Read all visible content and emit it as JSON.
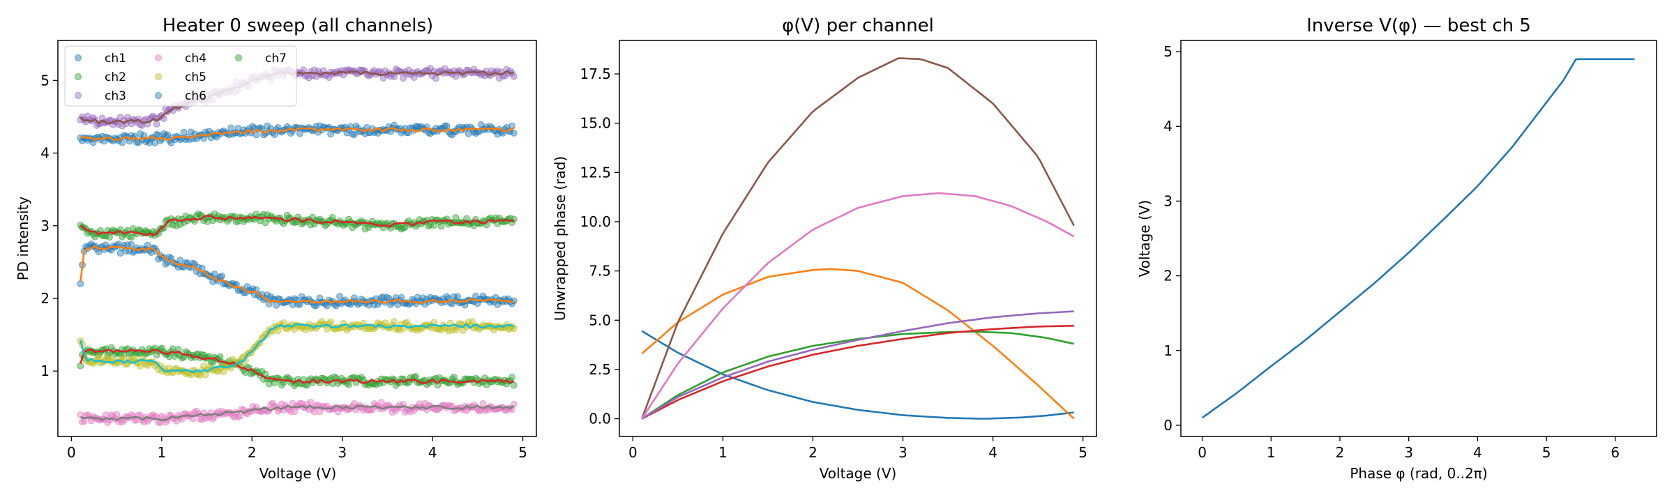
{
  "chart_data": [
    {
      "type": "scatter",
      "title": "Heater 0 sweep (all channels)",
      "xlabel": "Voltage (V)",
      "ylabel": "PD intensity",
      "xlim": [
        -0.15,
        5.15
      ],
      "ylim": [
        0.1,
        5.55
      ],
      "xticks": [
        0,
        1,
        2,
        3,
        4,
        5
      ],
      "yticks": [
        1,
        2,
        3,
        4,
        5
      ],
      "grid": false,
      "legend": {
        "placement": "upper-left",
        "columns": 3,
        "entries": [
          "ch1",
          "ch2",
          "ch3",
          "ch4",
          "ch5",
          "ch6",
          "ch7"
        ]
      },
      "series": [
        {
          "name": "ch1",
          "marker_color": "#1f77b4",
          "line_color": "#ff7f0e",
          "points": [
            [
              0.1,
              2.25
            ],
            [
              0.15,
              2.72
            ],
            [
              0.2,
              2.7
            ],
            [
              0.5,
              2.69
            ],
            [
              0.9,
              2.68
            ],
            [
              1.0,
              2.55
            ],
            [
              1.3,
              2.45
            ],
            [
              1.6,
              2.28
            ],
            [
              1.9,
              2.12
            ],
            [
              2.1,
              2.05
            ],
            [
              2.2,
              1.96
            ],
            [
              2.5,
              1.95
            ],
            [
              3.0,
              1.96
            ],
            [
              3.5,
              1.96
            ],
            [
              4.0,
              1.96
            ],
            [
              4.5,
              1.97
            ],
            [
              4.9,
              1.96
            ]
          ]
        },
        {
          "name": "ch2",
          "marker_color": "#2ca02c",
          "line_color": "#d62728",
          "points": [
            [
              0.1,
              1.1
            ],
            [
              0.15,
              1.28
            ],
            [
              0.5,
              1.28
            ],
            [
              0.9,
              1.28
            ],
            [
              1.2,
              1.24
            ],
            [
              1.5,
              1.18
            ],
            [
              1.8,
              1.1
            ],
            [
              2.0,
              1.0
            ],
            [
              2.2,
              0.88
            ],
            [
              2.5,
              0.86
            ],
            [
              3.0,
              0.86
            ],
            [
              3.5,
              0.86
            ],
            [
              4.0,
              0.86
            ],
            [
              4.5,
              0.86
            ],
            [
              4.9,
              0.86
            ]
          ]
        },
        {
          "name": "ch3",
          "marker_color": "#9467bd",
          "line_color": "#8c564b",
          "points": [
            [
              0.1,
              4.48
            ],
            [
              0.3,
              4.43
            ],
            [
              0.6,
              4.43
            ],
            [
              0.95,
              4.45
            ],
            [
              1.1,
              4.6
            ],
            [
              1.4,
              4.72
            ],
            [
              1.7,
              4.85
            ],
            [
              2.0,
              5.0
            ],
            [
              2.3,
              5.1
            ],
            [
              3.0,
              5.1
            ],
            [
              3.5,
              5.1
            ],
            [
              4.0,
              5.1
            ],
            [
              4.5,
              5.1
            ],
            [
              4.9,
              5.1
            ]
          ]
        },
        {
          "name": "ch4",
          "marker_color": "#e377c2",
          "line_color": "#7f7f7f",
          "points": [
            [
              0.1,
              0.36
            ],
            [
              0.5,
              0.34
            ],
            [
              1.0,
              0.35
            ],
            [
              1.5,
              0.4
            ],
            [
              2.0,
              0.45
            ],
            [
              2.3,
              0.5
            ],
            [
              3.0,
              0.5
            ],
            [
              3.5,
              0.5
            ],
            [
              4.0,
              0.5
            ],
            [
              4.5,
              0.5
            ],
            [
              4.9,
              0.5
            ]
          ]
        },
        {
          "name": "ch5",
          "marker_color": "#bcbd22",
          "line_color": "#17becf",
          "points": [
            [
              0.1,
              1.42
            ],
            [
              0.15,
              1.15
            ],
            [
              0.5,
              1.13
            ],
            [
              0.9,
              1.13
            ],
            [
              1.05,
              1.0
            ],
            [
              1.4,
              1.0
            ],
            [
              1.7,
              1.05
            ],
            [
              1.9,
              1.15
            ],
            [
              2.1,
              1.4
            ],
            [
              2.25,
              1.62
            ],
            [
              2.5,
              1.62
            ],
            [
              3.0,
              1.62
            ],
            [
              3.5,
              1.62
            ],
            [
              4.0,
              1.62
            ],
            [
              4.5,
              1.62
            ],
            [
              4.9,
              1.62
            ]
          ]
        },
        {
          "name": "ch6",
          "marker_color": "#1f77b4",
          "line_color": "#ff7f0e",
          "points": [
            [
              0.1,
              4.2
            ],
            [
              0.5,
              4.2
            ],
            [
              1.0,
              4.2
            ],
            [
              1.5,
              4.25
            ],
            [
              2.0,
              4.3
            ],
            [
              2.5,
              4.32
            ],
            [
              3.0,
              4.32
            ],
            [
              3.5,
              4.32
            ],
            [
              4.0,
              4.32
            ],
            [
              4.5,
              4.32
            ],
            [
              4.9,
              4.32
            ]
          ]
        },
        {
          "name": "ch7",
          "marker_color": "#2ca02c",
          "line_color": "#d62728",
          "points": [
            [
              0.1,
              2.98
            ],
            [
              0.2,
              2.9
            ],
            [
              0.6,
              2.9
            ],
            [
              0.95,
              2.88
            ],
            [
              1.05,
              3.05
            ],
            [
              1.5,
              3.12
            ],
            [
              2.0,
              3.1
            ],
            [
              2.5,
              3.08
            ],
            [
              3.0,
              3.05
            ],
            [
              3.5,
              3.0
            ],
            [
              4.0,
              3.05
            ],
            [
              4.5,
              3.05
            ],
            [
              4.9,
              3.08
            ]
          ]
        }
      ]
    },
    {
      "type": "line",
      "title": "φ(V) per channel",
      "xlabel": "Voltage (V)",
      "ylabel": "Unwrapped phase (rad)",
      "xlim": [
        -0.15,
        5.15
      ],
      "ylim": [
        -0.9,
        19.2
      ],
      "xticks": [
        0,
        1,
        2,
        3,
        4,
        5
      ],
      "yticks": [
        0.0,
        2.5,
        5.0,
        7.5,
        10.0,
        12.5,
        15.0,
        17.5
      ],
      "grid": false,
      "series": [
        {
          "color": "#1f77b4",
          "points": [
            [
              0.1,
              4.45
            ],
            [
              0.5,
              3.35
            ],
            [
              1.0,
              2.25
            ],
            [
              1.5,
              1.45
            ],
            [
              2.0,
              0.85
            ],
            [
              2.5,
              0.45
            ],
            [
              3.0,
              0.18
            ],
            [
              3.5,
              0.04
            ],
            [
              3.9,
              0.0
            ],
            [
              4.3,
              0.06
            ],
            [
              4.6,
              0.16
            ],
            [
              4.9,
              0.32
            ]
          ]
        },
        {
          "color": "#ff7f0e",
          "points": [
            [
              0.1,
              3.3
            ],
            [
              0.5,
              4.9
            ],
            [
              1.0,
              6.3
            ],
            [
              1.5,
              7.2
            ],
            [
              2.0,
              7.55
            ],
            [
              2.2,
              7.6
            ],
            [
              2.5,
              7.5
            ],
            [
              3.0,
              6.9
            ],
            [
              3.5,
              5.5
            ],
            [
              4.0,
              3.7
            ],
            [
              4.5,
              1.7
            ],
            [
              4.9,
              0.0
            ]
          ]
        },
        {
          "color": "#2ca02c",
          "points": [
            [
              0.1,
              0.0
            ],
            [
              0.5,
              1.2
            ],
            [
              1.0,
              2.35
            ],
            [
              1.5,
              3.15
            ],
            [
              2.0,
              3.7
            ],
            [
              2.5,
              4.05
            ],
            [
              3.0,
              4.3
            ],
            [
              3.5,
              4.4
            ],
            [
              3.8,
              4.42
            ],
            [
              4.2,
              4.35
            ],
            [
              4.6,
              4.1
            ],
            [
              4.9,
              3.8
            ]
          ]
        },
        {
          "color": "#d62728",
          "points": [
            [
              0.1,
              0.0
            ],
            [
              0.5,
              0.95
            ],
            [
              1.0,
              1.9
            ],
            [
              1.5,
              2.65
            ],
            [
              2.0,
              3.25
            ],
            [
              2.5,
              3.7
            ],
            [
              3.0,
              4.05
            ],
            [
              3.5,
              4.35
            ],
            [
              4.0,
              4.55
            ],
            [
              4.5,
              4.68
            ],
            [
              4.9,
              4.72
            ]
          ]
        },
        {
          "color": "#9467bd",
          "points": [
            [
              0.1,
              0.0
            ],
            [
              0.5,
              1.1
            ],
            [
              1.0,
              2.1
            ],
            [
              1.5,
              2.9
            ],
            [
              2.0,
              3.5
            ],
            [
              2.5,
              4.0
            ],
            [
              3.0,
              4.45
            ],
            [
              3.5,
              4.85
            ],
            [
              4.0,
              5.15
            ],
            [
              4.5,
              5.35
            ],
            [
              4.9,
              5.45
            ]
          ]
        },
        {
          "color": "#8c564b",
          "points": [
            [
              0.1,
              0.0
            ],
            [
              0.5,
              4.9
            ],
            [
              1.0,
              9.4
            ],
            [
              1.5,
              13.0
            ],
            [
              2.0,
              15.6
            ],
            [
              2.5,
              17.3
            ],
            [
              2.95,
              18.3
            ],
            [
              3.2,
              18.25
            ],
            [
              3.5,
              17.8
            ],
            [
              4.0,
              16.0
            ],
            [
              4.5,
              13.3
            ],
            [
              4.9,
              9.8
            ]
          ]
        },
        {
          "color": "#e377c2",
          "points": [
            [
              0.1,
              0.0
            ],
            [
              0.5,
              2.8
            ],
            [
              1.0,
              5.6
            ],
            [
              1.5,
              7.9
            ],
            [
              2.0,
              9.6
            ],
            [
              2.5,
              10.7
            ],
            [
              3.0,
              11.3
            ],
            [
              3.4,
              11.45
            ],
            [
              3.8,
              11.3
            ],
            [
              4.2,
              10.8
            ],
            [
              4.6,
              10.0
            ],
            [
              4.9,
              9.25
            ]
          ]
        }
      ]
    },
    {
      "type": "line",
      "title": "Inverse V(φ) — best ch 5",
      "xlabel": "Phase φ (rad, 0..2π)",
      "ylabel": "Voltage (V)",
      "xlim": [
        -0.31,
        6.6
      ],
      "ylim": [
        -0.15,
        5.15
      ],
      "xticks": [
        0,
        1,
        2,
        3,
        4,
        5,
        6
      ],
      "yticks": [
        0,
        1,
        2,
        3,
        4,
        5
      ],
      "grid": false,
      "series": [
        {
          "color": "#1f77b4",
          "points": [
            [
              0.0,
              0.1
            ],
            [
              0.5,
              0.43
            ],
            [
              1.0,
              0.79
            ],
            [
              1.5,
              1.14
            ],
            [
              2.0,
              1.52
            ],
            [
              2.5,
              1.9
            ],
            [
              3.0,
              2.31
            ],
            [
              3.5,
              2.75
            ],
            [
              4.0,
              3.2
            ],
            [
              4.5,
              3.72
            ],
            [
              5.0,
              4.32
            ],
            [
              5.25,
              4.62
            ],
            [
              5.43,
              4.9
            ],
            [
              6.28,
              4.9
            ]
          ]
        }
      ]
    }
  ]
}
